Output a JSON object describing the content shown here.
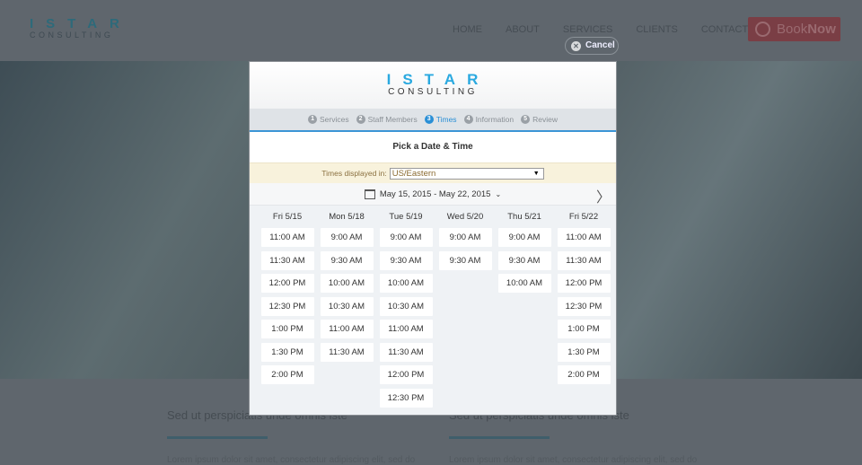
{
  "site": {
    "logo_top": "ISTAR",
    "logo_bottom": "CONSULTING",
    "nav": [
      "HOME",
      "ABOUT",
      "SERVICES",
      "CLIENTS",
      "CONTACT"
    ],
    "book_a": "Book",
    "book_b": "Now",
    "columns": [
      {
        "heading": "Sed ut perspiciatis unde omnis iste",
        "text": "Lorem ipsum dolor sit amet, consectetur adipiscing elit, sed do"
      },
      {
        "heading": "Sed ut perspiciatis unde omnis iste",
        "text": "Lorem ipsum dolor sit amet, consectetur adipiscing elit, sed do"
      }
    ]
  },
  "cancel_label": "Cancel",
  "modal": {
    "logo_top": "ISTAR",
    "logo_bottom": "CONSULTING",
    "steps": [
      {
        "n": "1",
        "label": "Services"
      },
      {
        "n": "2",
        "label": "Staff Members"
      },
      {
        "n": "3",
        "label": "Times"
      },
      {
        "n": "4",
        "label": "Information"
      },
      {
        "n": "5",
        "label": "Review"
      }
    ],
    "active_step": "Times",
    "title": "Pick a Date & Time",
    "tz_label": "Times displayed in:",
    "tz_value": "US/Eastern",
    "date_range": "May 15, 2015 - May 22, 2015",
    "days": [
      {
        "label": "Fri 5/15",
        "slots": [
          "11:00 AM",
          "11:30 AM",
          "12:00 PM",
          "12:30 PM",
          "1:00 PM",
          "1:30 PM",
          "2:00 PM"
        ]
      },
      {
        "label": "Mon 5/18",
        "slots": [
          "9:00 AM",
          "9:30 AM",
          "10:00 AM",
          "10:30 AM",
          "11:00 AM",
          "11:30 AM"
        ]
      },
      {
        "label": "Tue 5/19",
        "slots": [
          "9:00 AM",
          "9:30 AM",
          "10:00 AM",
          "10:30 AM",
          "11:00 AM",
          "11:30 AM",
          "12:00 PM",
          "12:30 PM"
        ]
      },
      {
        "label": "Wed 5/20",
        "slots": [
          "9:00 AM",
          "9:30 AM"
        ]
      },
      {
        "label": "Thu 5/21",
        "slots": [
          "9:00 AM",
          "9:30 AM",
          "10:00 AM"
        ]
      },
      {
        "label": "Fri 5/22",
        "slots": [
          "11:00 AM",
          "11:30 AM",
          "12:00 PM",
          "12:30 PM",
          "1:00 PM",
          "1:30 PM",
          "2:00 PM"
        ]
      }
    ]
  }
}
